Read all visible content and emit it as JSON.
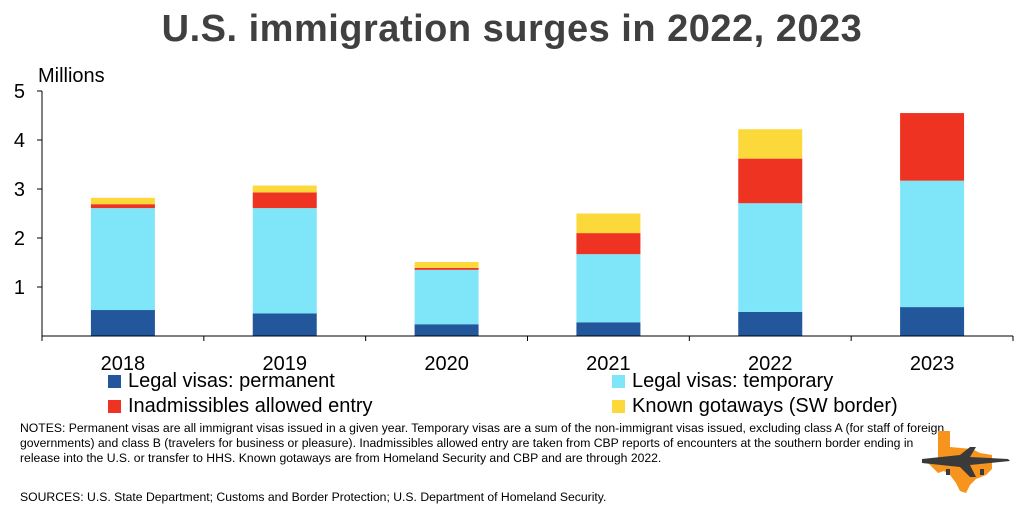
{
  "chart_data": {
    "type": "bar",
    "stacked": true,
    "title": "U.S. immigration surges in 2022, 2023",
    "ylabel": "Millions",
    "ylim": [
      0,
      5
    ],
    "yticks": [
      "1",
      "2",
      "3",
      "4",
      "5"
    ],
    "categories": [
      "2018",
      "2019",
      "2020",
      "2021",
      "2022",
      "2023"
    ],
    "series": [
      {
        "name": "Legal visas: permanent",
        "color": "#22579b",
        "values": [
          0.53,
          0.46,
          0.24,
          0.28,
          0.49,
          0.59
        ]
      },
      {
        "name": "Legal visas: temporary",
        "color": "#7fe6fa",
        "values": [
          2.08,
          2.15,
          1.11,
          1.39,
          2.22,
          2.58
        ]
      },
      {
        "name": "Inadmissibles allowed entry",
        "color": "#ef3322",
        "values": [
          0.08,
          0.32,
          0.04,
          0.43,
          0.91,
          1.38
        ]
      },
      {
        "name": "Known gotaways (SW border)",
        "color": "#fcd93a",
        "values": [
          0.13,
          0.14,
          0.12,
          0.4,
          0.6,
          0
        ]
      }
    ],
    "grid": false,
    "legend_position": "bottom"
  },
  "notes": "NOTES: Permanent visas are all immigrant visas issued in a given year. Temporary visas are a sum of the non-immigrant visas issued, excluding class A (for staff of foreign governments) and class B (travelers for business or pleasure). Inadmissibles allowed entry are taken from CBP reports of encounters at the southern border ending in release into the U.S. or transfer to HHS. Known gotaways are from Homeland Security and CBP and are through 2022.",
  "sources": "SOURCES: U.S. State Department; Customs and Border Protection; U.S. Department of Homeland Security.",
  "logo": {
    "icon": "texas-map-airplane-icon",
    "color": "#f7941d"
  }
}
